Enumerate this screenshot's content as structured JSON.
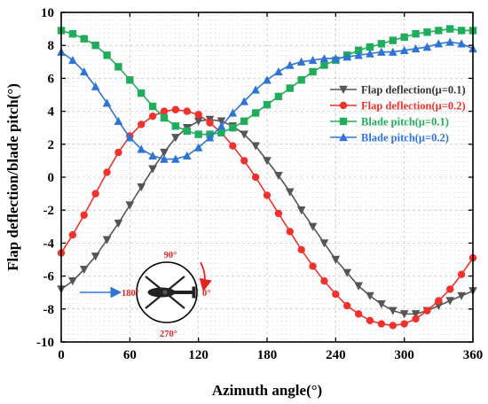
{
  "chart_data": {
    "type": "line",
    "xlabel": "Azimuth angle(°)",
    "ylabel": "Flap deflection/blade pitch(°)",
    "xlim": [
      0,
      360
    ],
    "ylim": [
      -10,
      10
    ],
    "xticks": [
      0,
      60,
      120,
      180,
      240,
      300,
      360
    ],
    "yticks": [
      -10,
      -8,
      -6,
      -4,
      -2,
      0,
      2,
      4,
      6,
      8,
      10
    ],
    "grid": true,
    "legend_position": "right",
    "series": [
      {
        "name": "Flap deflection(μ=0.1)",
        "color": "#555555",
        "marker": "triangle-down",
        "x": [
          0,
          10,
          20,
          30,
          40,
          50,
          60,
          70,
          80,
          90,
          100,
          110,
          120,
          130,
          140,
          150,
          160,
          170,
          180,
          190,
          200,
          210,
          220,
          230,
          240,
          250,
          260,
          270,
          280,
          290,
          300,
          310,
          320,
          330,
          340,
          350,
          360
        ],
        "y": [
          -6.8,
          -6.3,
          -5.6,
          -4.8,
          -3.8,
          -2.8,
          -1.7,
          -0.6,
          0.5,
          1.5,
          2.4,
          3.0,
          3.4,
          3.5,
          3.4,
          3.1,
          2.6,
          1.9,
          1.0,
          0.1,
          -0.9,
          -2.0,
          -3.0,
          -4.0,
          -5.0,
          -5.8,
          -6.6,
          -7.2,
          -7.7,
          -8.1,
          -8.3,
          -8.3,
          -8.1,
          -7.8,
          -7.5,
          -7.2,
          -6.9
        ]
      },
      {
        "name": "Flap deflection(μ=0.2)",
        "color": "#f0312c",
        "marker": "circle",
        "x": [
          0,
          10,
          20,
          30,
          40,
          50,
          60,
          70,
          80,
          90,
          100,
          110,
          120,
          130,
          140,
          150,
          160,
          170,
          180,
          190,
          200,
          210,
          220,
          230,
          240,
          250,
          260,
          270,
          280,
          290,
          300,
          310,
          320,
          330,
          340,
          350,
          360
        ],
        "y": [
          -4.6,
          -3.5,
          -2.3,
          -1.0,
          0.3,
          1.5,
          2.5,
          3.2,
          3.7,
          4.0,
          4.1,
          4.0,
          3.8,
          3.3,
          2.7,
          1.9,
          1.0,
          0.0,
          -1.1,
          -2.2,
          -3.3,
          -4.4,
          -5.4,
          -6.3,
          -7.1,
          -7.8,
          -8.3,
          -8.7,
          -8.9,
          -9.0,
          -8.9,
          -8.6,
          -8.1,
          -7.5,
          -6.8,
          -5.9,
          -4.9
        ]
      },
      {
        "name": "Blade pitch(μ=0.1)",
        "color": "#1fad5b",
        "marker": "square",
        "x": [
          0,
          10,
          20,
          30,
          40,
          50,
          60,
          70,
          80,
          90,
          100,
          110,
          120,
          130,
          140,
          150,
          160,
          170,
          180,
          190,
          200,
          210,
          220,
          230,
          240,
          250,
          260,
          270,
          280,
          290,
          300,
          310,
          320,
          330,
          340,
          350,
          360
        ],
        "y": [
          8.9,
          8.7,
          8.4,
          8.0,
          7.4,
          6.7,
          5.9,
          5.1,
          4.3,
          3.6,
          3.1,
          2.8,
          2.6,
          2.6,
          2.7,
          3.0,
          3.4,
          3.9,
          4.4,
          4.9,
          5.4,
          5.9,
          6.4,
          6.8,
          7.1,
          7.4,
          7.7,
          7.9,
          8.1,
          8.3,
          8.5,
          8.7,
          8.8,
          8.9,
          9.0,
          8.9,
          8.9
        ]
      },
      {
        "name": "Blade pitch(μ=0.2)",
        "color": "#2d74d6",
        "marker": "triangle-up",
        "x": [
          0,
          10,
          20,
          30,
          40,
          50,
          60,
          70,
          80,
          90,
          100,
          110,
          120,
          130,
          140,
          150,
          160,
          170,
          180,
          190,
          200,
          210,
          220,
          230,
          240,
          250,
          260,
          270,
          280,
          290,
          300,
          310,
          320,
          330,
          340,
          350,
          360
        ],
        "y": [
          7.6,
          7.1,
          6.4,
          5.5,
          4.5,
          3.4,
          2.4,
          1.7,
          1.3,
          1.1,
          1.1,
          1.3,
          1.8,
          2.4,
          3.1,
          3.9,
          4.6,
          5.3,
          5.9,
          6.4,
          6.8,
          7.0,
          7.1,
          7.2,
          7.2,
          7.3,
          7.4,
          7.5,
          7.6,
          7.6,
          7.7,
          7.8,
          7.9,
          8.1,
          8.2,
          8.1,
          7.8
        ]
      }
    ]
  },
  "inset": {
    "label_top": "90°",
    "label_left": "180°",
    "label_right": "0°",
    "label_bottom": "270°",
    "arrow_color": "#2d74d6",
    "rotation_color": "#e0261d"
  }
}
